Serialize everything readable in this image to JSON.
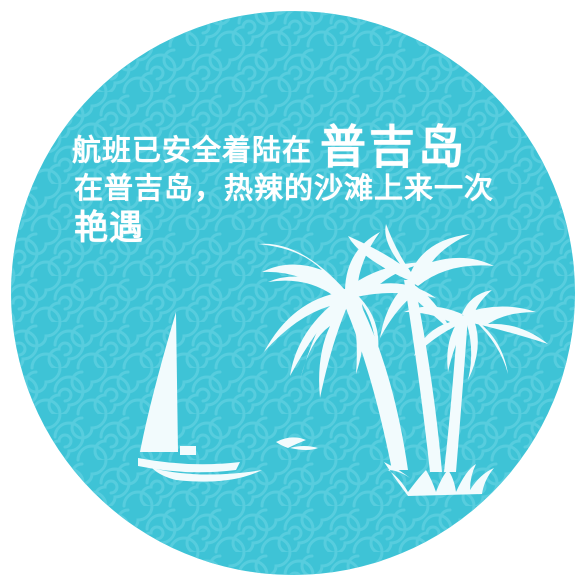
{
  "headline": {
    "line1_prefix": "航班已安全着陆在",
    "line1_emphasis": "普吉岛",
    "line2": "在普吉岛，热辣的沙滩上来一次",
    "line3": "艳遇"
  },
  "colors": {
    "background_circle": "#3ec3d6",
    "swirl_pattern": "#5fd0e0",
    "silhouette": "#f2fbfd",
    "text": "#ffffff"
  },
  "illustration": {
    "icons": [
      "sailboat-icon",
      "palm-tree-icon",
      "wave-icon",
      "grass-icon"
    ]
  }
}
